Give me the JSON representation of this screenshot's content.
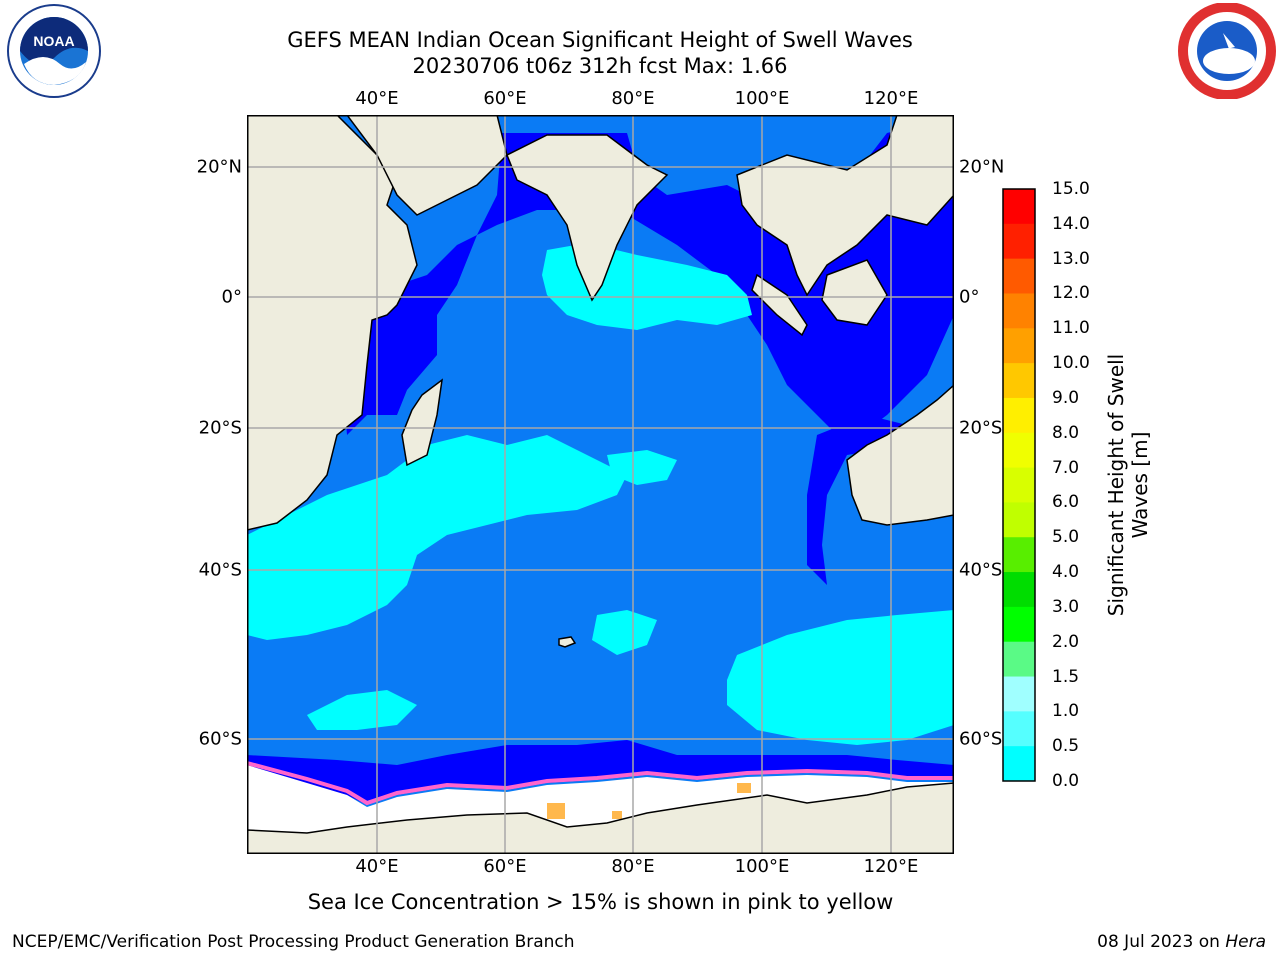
{
  "title": {
    "line1": "GEFS MEAN Indian Ocean Significant Height of Swell Waves",
    "line2": "20230706 t06z 312h fcst   Max: 1.66"
  },
  "axes": {
    "lon_ticks": [
      "40°E",
      "60°E",
      "80°E",
      "100°E",
      "120°E"
    ],
    "lat_ticks": [
      "20°N",
      "0°",
      "20°S",
      "40°S",
      "60°S"
    ]
  },
  "colorbar": {
    "title_line1": "Significant Height of Swell",
    "title_line2": "Waves [m]",
    "labels": [
      "15.0",
      "14.0",
      "13.0",
      "12.0",
      "11.0",
      "10.0",
      "9.0",
      "8.0",
      "7.0",
      "6.0",
      "5.0",
      "4.0",
      "3.0",
      "2.0",
      "1.5",
      "1.0",
      "0.5",
      "0.0"
    ],
    "colors": [
      "#ff0000",
      "#ff2000",
      "#ff5a00",
      "#ff8200",
      "#ffa000",
      "#ffc800",
      "#ffef00",
      "#f0ff00",
      "#d8ff00",
      "#c0ff00",
      "#58ee00",
      "#00dd00",
      "#00ff00",
      "#5afa86",
      "#a0ffff",
      "#55ffff",
      "#00ffff",
      "#0080ff",
      "#0000ff"
    ]
  },
  "colors": {
    "land": "#eeedde",
    "deep_blue": "#0000ff",
    "mid_blue": "#0a7bf5",
    "cyan": "#00ffff",
    "ice_white": "#ffffff",
    "ice_pink": "#ff66cc",
    "ice_orange": "#ffb84d"
  },
  "caption": "Sea Ice Concentration > 15% is shown in pink to yellow",
  "footer": {
    "left": "NCEP/EMC/Verification Post Processing Product Generation Branch",
    "right_date": "08 Jul 2023 on",
    "right_host": "Hera"
  },
  "logos": {
    "left": "noaa-logo",
    "right": "nws-logo"
  }
}
